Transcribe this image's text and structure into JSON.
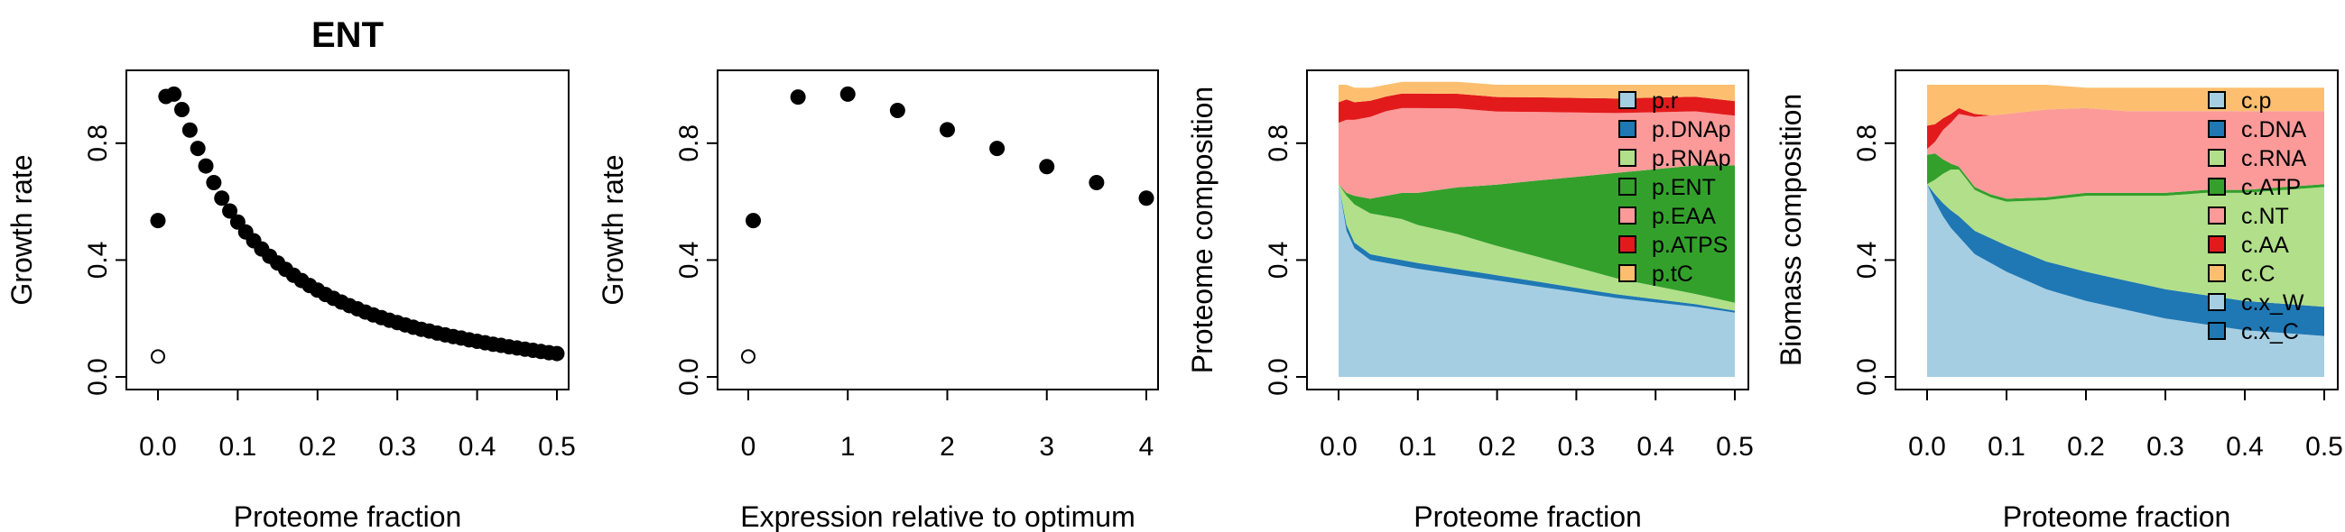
{
  "chart_data": [
    {
      "type": "scatter",
      "title": "ENT",
      "xlabel": "Proteome fraction",
      "ylabel": "Growth rate",
      "xlim": [
        0,
        0.5
      ],
      "ylim": [
        0,
        1
      ],
      "x_ticks": [
        "0.0",
        "0.1",
        "0.2",
        "0.3",
        "0.4",
        "0.5"
      ],
      "x_tick_values": [
        0,
        0.1,
        0.2,
        0.3,
        0.4,
        0.5
      ],
      "y_ticks": [
        "0.0",
        "0.4",
        "0.8"
      ],
      "y_tick_values": [
        0,
        0.4,
        0.8
      ],
      "open_point": {
        "x": 0.0,
        "y": 0.07
      },
      "points": [
        {
          "x": 0.0,
          "y": 0.535
        },
        {
          "x": 0.01,
          "y": 0.96
        },
        {
          "x": 0.02,
          "y": 0.968
        },
        {
          "x": 0.03,
          "y": 0.915
        },
        {
          "x": 0.04,
          "y": 0.845
        },
        {
          "x": 0.05,
          "y": 0.782
        },
        {
          "x": 0.06,
          "y": 0.722
        },
        {
          "x": 0.07,
          "y": 0.665
        },
        {
          "x": 0.08,
          "y": 0.612
        },
        {
          "x": 0.09,
          "y": 0.568
        },
        {
          "x": 0.1,
          "y": 0.53
        },
        {
          "x": 0.11,
          "y": 0.496
        },
        {
          "x": 0.12,
          "y": 0.466
        },
        {
          "x": 0.13,
          "y": 0.438
        },
        {
          "x": 0.14,
          "y": 0.413
        },
        {
          "x": 0.15,
          "y": 0.39
        },
        {
          "x": 0.16,
          "y": 0.368
        },
        {
          "x": 0.17,
          "y": 0.348
        },
        {
          "x": 0.18,
          "y": 0.33
        },
        {
          "x": 0.19,
          "y": 0.313
        },
        {
          "x": 0.2,
          "y": 0.297
        },
        {
          "x": 0.21,
          "y": 0.282
        },
        {
          "x": 0.22,
          "y": 0.269
        },
        {
          "x": 0.23,
          "y": 0.256
        },
        {
          "x": 0.24,
          "y": 0.244
        },
        {
          "x": 0.25,
          "y": 0.233
        },
        {
          "x": 0.26,
          "y": 0.222
        },
        {
          "x": 0.27,
          "y": 0.212
        },
        {
          "x": 0.28,
          "y": 0.203
        },
        {
          "x": 0.29,
          "y": 0.194
        },
        {
          "x": 0.3,
          "y": 0.186
        },
        {
          "x": 0.31,
          "y": 0.178
        },
        {
          "x": 0.32,
          "y": 0.17
        },
        {
          "x": 0.33,
          "y": 0.163
        },
        {
          "x": 0.34,
          "y": 0.157
        },
        {
          "x": 0.35,
          "y": 0.15
        },
        {
          "x": 0.36,
          "y": 0.144
        },
        {
          "x": 0.37,
          "y": 0.138
        },
        {
          "x": 0.38,
          "y": 0.133
        },
        {
          "x": 0.39,
          "y": 0.127
        },
        {
          "x": 0.4,
          "y": 0.122
        },
        {
          "x": 0.41,
          "y": 0.117
        },
        {
          "x": 0.42,
          "y": 0.112
        },
        {
          "x": 0.43,
          "y": 0.108
        },
        {
          "x": 0.44,
          "y": 0.103
        },
        {
          "x": 0.45,
          "y": 0.099
        },
        {
          "x": 0.46,
          "y": 0.095
        },
        {
          "x": 0.47,
          "y": 0.091
        },
        {
          "x": 0.48,
          "y": 0.087
        },
        {
          "x": 0.49,
          "y": 0.083
        },
        {
          "x": 0.5,
          "y": 0.08
        }
      ]
    },
    {
      "type": "scatter",
      "title": "",
      "xlabel": "Expression relative to optimum",
      "ylabel": "Growth rate",
      "xlim": [
        0,
        4
      ],
      "ylim": [
        0,
        1
      ],
      "x_ticks": [
        "0",
        "1",
        "2",
        "3",
        "4"
      ],
      "x_tick_values": [
        0,
        1,
        2,
        3,
        4
      ],
      "y_ticks": [
        "0.0",
        "0.4",
        "0.8"
      ],
      "y_tick_values": [
        0,
        0.4,
        0.8
      ],
      "open_point": {
        "x": 0.0,
        "y": 0.07
      },
      "points": [
        {
          "x": 0.05,
          "y": 0.535
        },
        {
          "x": 0.5,
          "y": 0.958
        },
        {
          "x": 1.0,
          "y": 0.968
        },
        {
          "x": 1.5,
          "y": 0.912
        },
        {
          "x": 2.0,
          "y": 0.846
        },
        {
          "x": 2.5,
          "y": 0.782
        },
        {
          "x": 3.0,
          "y": 0.72
        },
        {
          "x": 3.5,
          "y": 0.665
        },
        {
          "x": 4.0,
          "y": 0.612
        }
      ]
    },
    {
      "type": "area",
      "title": "",
      "xlabel": "Proteome fraction",
      "ylabel": "Proteome composition",
      "xlim": [
        0,
        0.5
      ],
      "ylim": [
        0,
        1
      ],
      "x_ticks": [
        "0.0",
        "0.1",
        "0.2",
        "0.3",
        "0.4",
        "0.5"
      ],
      "x_tick_values": [
        0,
        0.1,
        0.2,
        0.3,
        0.4,
        0.5
      ],
      "y_ticks": [
        "0.0",
        "0.4",
        "0.8"
      ],
      "y_tick_values": [
        0,
        0.4,
        0.8
      ],
      "legend_position": "top-right",
      "x": [
        0.0,
        0.01,
        0.02,
        0.04,
        0.06,
        0.08,
        0.1,
        0.15,
        0.2,
        0.25,
        0.3,
        0.35,
        0.4,
        0.45,
        0.5
      ],
      "series": [
        {
          "name": "p.r",
          "color": "#a6cee3",
          "values": [
            0.66,
            0.5,
            0.44,
            0.4,
            0.39,
            0.38,
            0.37,
            0.35,
            0.33,
            0.31,
            0.29,
            0.27,
            0.255,
            0.24,
            0.22
          ]
        },
        {
          "name": "p.DNAp",
          "color": "#1f78b4",
          "values": [
            0.0,
            0.02,
            0.02,
            0.02,
            0.02,
            0.02,
            0.02,
            0.019,
            0.018,
            0.017,
            0.015,
            0.013,
            0.011,
            0.009,
            0.007
          ]
        },
        {
          "name": "p.RNAp",
          "color": "#b2df8a",
          "values": [
            0.0,
            0.1,
            0.13,
            0.14,
            0.14,
            0.14,
            0.13,
            0.12,
            0.1,
            0.085,
            0.07,
            0.055,
            0.045,
            0.035,
            0.027
          ]
        },
        {
          "name": "p.ENT",
          "color": "#33a02c",
          "values": [
            0.0,
            0.01,
            0.03,
            0.05,
            0.07,
            0.09,
            0.11,
            0.16,
            0.21,
            0.26,
            0.31,
            0.36,
            0.4,
            0.44,
            0.47
          ]
        },
        {
          "name": "p.EAA",
          "color": "#fb9a99",
          "values": [
            0.21,
            0.25,
            0.26,
            0.28,
            0.29,
            0.29,
            0.29,
            0.27,
            0.25,
            0.235,
            0.22,
            0.205,
            0.195,
            0.185,
            0.17
          ]
        },
        {
          "name": "p.ATPS",
          "color": "#e31a1c",
          "values": [
            0.07,
            0.07,
            0.06,
            0.055,
            0.05,
            0.05,
            0.05,
            0.05,
            0.05,
            0.05,
            0.05,
            0.05,
            0.05,
            0.05,
            0.05
          ]
        },
        {
          "name": "p.tC",
          "color": "#fdbf6f",
          "values": [
            0.06,
            0.05,
            0.05,
            0.045,
            0.04,
            0.04,
            0.04,
            0.041,
            0.042,
            0.043,
            0.045,
            0.047,
            0.044,
            0.041,
            0.056
          ]
        }
      ]
    },
    {
      "type": "area",
      "title": "",
      "xlabel": "Proteome fraction",
      "ylabel": "Biomass composition",
      "xlim": [
        0,
        0.5
      ],
      "ylim": [
        0,
        1
      ],
      "x_ticks": [
        "0.0",
        "0.1",
        "0.2",
        "0.3",
        "0.4",
        "0.5"
      ],
      "x_tick_values": [
        0,
        0.1,
        0.2,
        0.3,
        0.4,
        0.5
      ],
      "y_ticks": [
        "0.0",
        "0.4",
        "0.8"
      ],
      "y_tick_values": [
        0,
        0.4,
        0.8
      ],
      "legend_position": "top-right",
      "x": [
        0.0,
        0.01,
        0.02,
        0.03,
        0.04,
        0.05,
        0.06,
        0.08,
        0.1,
        0.15,
        0.2,
        0.25,
        0.3,
        0.35,
        0.4,
        0.45,
        0.5
      ],
      "series": [
        {
          "name": "c.p",
          "color": "#a6cee3",
          "values": [
            0.66,
            0.6,
            0.55,
            0.51,
            0.48,
            0.45,
            0.42,
            0.39,
            0.36,
            0.3,
            0.26,
            0.23,
            0.2,
            0.18,
            0.16,
            0.15,
            0.14
          ]
        },
        {
          "name": "c.DNA",
          "color": "#1f78b4",
          "values": [
            0.0,
            0.025,
            0.045,
            0.06,
            0.07,
            0.075,
            0.08,
            0.085,
            0.09,
            0.095,
            0.1,
            0.1,
            0.1,
            0.1,
            0.1,
            0.1,
            0.1
          ]
        },
        {
          "name": "c.RNA",
          "color": "#b2df8a",
          "values": [
            0.0,
            0.05,
            0.1,
            0.14,
            0.16,
            0.15,
            0.14,
            0.14,
            0.15,
            0.21,
            0.26,
            0.29,
            0.32,
            0.35,
            0.37,
            0.39,
            0.41
          ]
        },
        {
          "name": "c.ATP",
          "color": "#33a02c",
          "values": [
            0.1,
            0.09,
            0.05,
            0.02,
            0.01,
            0.01,
            0.01,
            0.01,
            0.01,
            0.01,
            0.01,
            0.01,
            0.01,
            0.01,
            0.01,
            0.01,
            0.01
          ]
        },
        {
          "name": "c.NT",
          "color": "#fb9a99",
          "values": [
            0.02,
            0.04,
            0.1,
            0.14,
            0.18,
            0.21,
            0.24,
            0.27,
            0.29,
            0.3,
            0.29,
            0.28,
            0.28,
            0.27,
            0.27,
            0.26,
            0.25
          ]
        },
        {
          "name": "c.AA",
          "color": "#e31a1c",
          "values": [
            0.08,
            0.06,
            0.04,
            0.03,
            0.02,
            0.015,
            0.01,
            0.0,
            0.0,
            0.0,
            0.0,
            0.0,
            0.0,
            0.0,
            0.0,
            0.0,
            0.0
          ]
        },
        {
          "name": "c.C",
          "color": "#fdbf6f",
          "values": [
            0.14,
            0.135,
            0.115,
            0.1,
            0.08,
            0.09,
            0.1,
            0.105,
            0.1,
            0.085,
            0.07,
            0.08,
            0.08,
            0.08,
            0.08,
            0.08,
            0.08
          ]
        },
        {
          "name": "c.x_W",
          "color": "#a6cee3",
          "values": [
            0,
            0,
            0,
            0,
            0,
            0,
            0,
            0,
            0,
            0,
            0,
            0,
            0,
            0,
            0,
            0,
            0
          ]
        },
        {
          "name": "c.x_C",
          "color": "#1f78b4",
          "values": [
            0,
            0,
            0,
            0,
            0,
            0,
            0,
            0,
            0,
            0,
            0,
            0,
            0,
            0,
            0,
            0,
            0
          ]
        }
      ]
    }
  ]
}
